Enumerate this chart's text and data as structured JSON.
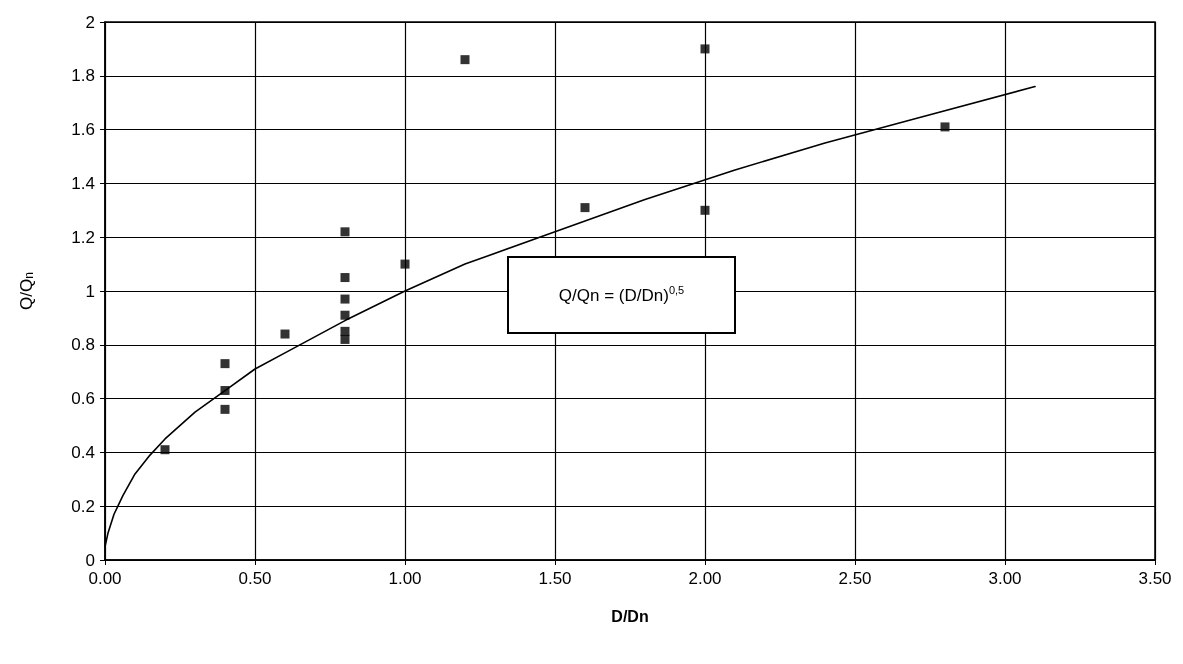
{
  "chart_data": {
    "type": "scatter",
    "xlabel": "D/Dn",
    "ylabel": "Q/Q$_{n}$",
    "annotations": [
      "Q/Qn = (D/Dn)$^{0,5}$"
    ],
    "series": [
      {
        "color": "#000000",
        "marker": "square",
        "x": [
          0.2,
          0.4,
          0.4,
          0.4,
          0.6,
          0.8,
          0.8,
          0.8,
          0.8,
          0.8,
          0.8,
          1.0,
          1.2,
          1.6,
          2.0,
          2.0,
          2.8
        ],
        "values": [
          0.41,
          0.73,
          0.63,
          0.56,
          0.84,
          1.22,
          1.05,
          0.97,
          0.91,
          0.85,
          0.82,
          1.1,
          1.86,
          1.31,
          1.9,
          1.3,
          1.61
        ]
      },
      {
        "type": "line",
        "color": "#000000",
        "marker": "none",
        "x": [
          0,
          0.01,
          0.03,
          0.06,
          0.1,
          0.15,
          0.2,
          0.3,
          0.4,
          0.5,
          0.6,
          0.8,
          1.0,
          1.2,
          1.5,
          1.8,
          2.1,
          2.4,
          2.7,
          3.1
        ],
        "values": [
          0.05,
          0.1,
          0.17,
          0.24,
          0.32,
          0.39,
          0.45,
          0.55,
          0.63,
          0.71,
          0.77,
          0.89,
          1.0,
          1.1,
          1.22,
          1.34,
          1.45,
          1.55,
          1.64,
          1.76
        ]
      }
    ],
    "xlim": [
      0,
      3.5
    ],
    "xticks": [
      {
        "value": 0,
        "label": "0.00"
      },
      {
        "value": 0.5,
        "label": "0.50"
      },
      {
        "value": 1,
        "label": "1.00"
      },
      {
        "value": 1.5,
        "label": "1.50"
      },
      {
        "value": 2,
        "label": "2.00"
      },
      {
        "value": 2.5,
        "label": "2.50"
      },
      {
        "value": 3,
        "label": "3.00"
      },
      {
        "value": 3.5,
        "label": "3.50"
      }
    ],
    "ylim": [
      0,
      2
    ],
    "yticks": [
      0,
      0.2,
      0.4,
      0.6,
      0.8,
      1,
      1.2,
      1.4,
      1.6,
      1.8,
      2
    ],
    "grid": true
  }
}
